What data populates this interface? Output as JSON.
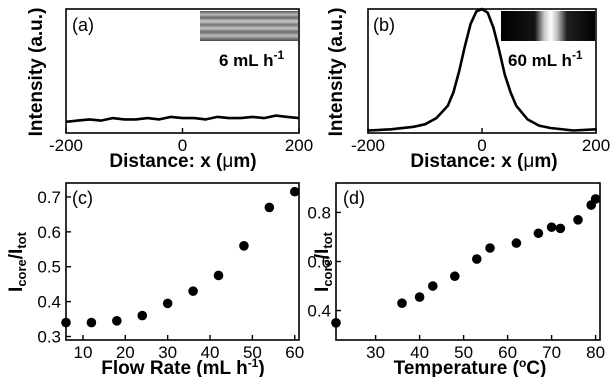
{
  "chart_data": [
    {
      "id": "a",
      "type": "line",
      "panel_label": "(a)",
      "inset_label": "6 mL h",
      "inset_label_sup": "-1",
      "xlabel": "Distance: x (",
      "xlabel_mu": "μ",
      "xlabel_end": "m)",
      "ylabel": "Intensity (a.u.)",
      "xlim": [
        -200,
        200
      ],
      "ylim": [
        0,
        1
      ],
      "xticks": [
        -200,
        0,
        200
      ],
      "x": [
        -200,
        -180,
        -160,
        -140,
        -120,
        -100,
        -80,
        -60,
        -40,
        -20,
        0,
        20,
        40,
        60,
        80,
        100,
        120,
        140,
        160,
        180,
        200
      ],
      "y": [
        0.09,
        0.1,
        0.11,
        0.1,
        0.12,
        0.11,
        0.11,
        0.12,
        0.11,
        0.13,
        0.12,
        0.12,
        0.11,
        0.13,
        0.12,
        0.12,
        0.13,
        0.12,
        0.14,
        0.13,
        0.12
      ]
    },
    {
      "id": "b",
      "type": "line",
      "panel_label": "(b)",
      "inset_label": "60 mL h",
      "inset_label_sup": "-1",
      "xlabel": "Distance: x (",
      "xlabel_mu": "μ",
      "xlabel_end": "m)",
      "ylabel": "Intensity (a.u.)",
      "xlim": [
        -200,
        200
      ],
      "ylim": [
        0,
        1
      ],
      "xticks": [
        -200,
        0,
        200
      ],
      "x": [
        -200,
        -160,
        -120,
        -100,
        -80,
        -60,
        -50,
        -40,
        -30,
        -20,
        -10,
        0,
        10,
        20,
        30,
        40,
        50,
        60,
        80,
        100,
        120,
        160,
        200
      ],
      "y": [
        0.02,
        0.03,
        0.05,
        0.07,
        0.12,
        0.22,
        0.33,
        0.5,
        0.7,
        0.88,
        0.98,
        1.0,
        0.97,
        0.85,
        0.67,
        0.47,
        0.33,
        0.22,
        0.11,
        0.06,
        0.04,
        0.02,
        0.03
      ]
    },
    {
      "id": "c",
      "type": "scatter",
      "panel_label": "(c)",
      "xlabel": "Flow Rate (mL h",
      "xlabel_sup": "-1",
      "xlabel_end": ")",
      "ylabel_main": "I",
      "ylabel_sub1": "core",
      "ylabel_mid": "/I",
      "ylabel_sub2": "tot",
      "xlim": [
        6,
        61
      ],
      "ylim": [
        0.29,
        0.74
      ],
      "xticks": [
        10,
        20,
        30,
        40,
        50,
        60
      ],
      "yticks": [
        0.3,
        0.4,
        0.5,
        0.6,
        0.7
      ],
      "ytick_labels": [
        "0.3",
        "0.4",
        "0.5",
        "0.6",
        "0.7"
      ],
      "x": [
        6,
        12,
        18,
        24,
        30,
        36,
        42,
        48,
        54,
        60
      ],
      "y": [
        0.34,
        0.34,
        0.345,
        0.36,
        0.395,
        0.43,
        0.475,
        0.56,
        0.67,
        0.715
      ]
    },
    {
      "id": "d",
      "type": "scatter",
      "panel_label": "(d)",
      "xlabel": "Temperature (",
      "xlabel_sup": "o",
      "xlabel_end": "C)",
      "ylabel_main": "I",
      "ylabel_sub1": "core",
      "ylabel_mid": "/I",
      "ylabel_sub2": "tot",
      "xlim": [
        21,
        81
      ],
      "ylim": [
        0.28,
        0.92
      ],
      "xticks": [
        30,
        40,
        50,
        60,
        70,
        80
      ],
      "yticks": [
        0.4,
        0.6,
        0.8
      ],
      "ytick_labels": [
        "0.4",
        "0.6",
        "0.8"
      ],
      "x": [
        21,
        36,
        40,
        43,
        48,
        53,
        56,
        62,
        67,
        70,
        72,
        76,
        79,
        80
      ],
      "y": [
        0.35,
        0.43,
        0.455,
        0.5,
        0.54,
        0.61,
        0.655,
        0.675,
        0.715,
        0.74,
        0.735,
        0.77,
        0.83,
        0.855
      ]
    }
  ]
}
